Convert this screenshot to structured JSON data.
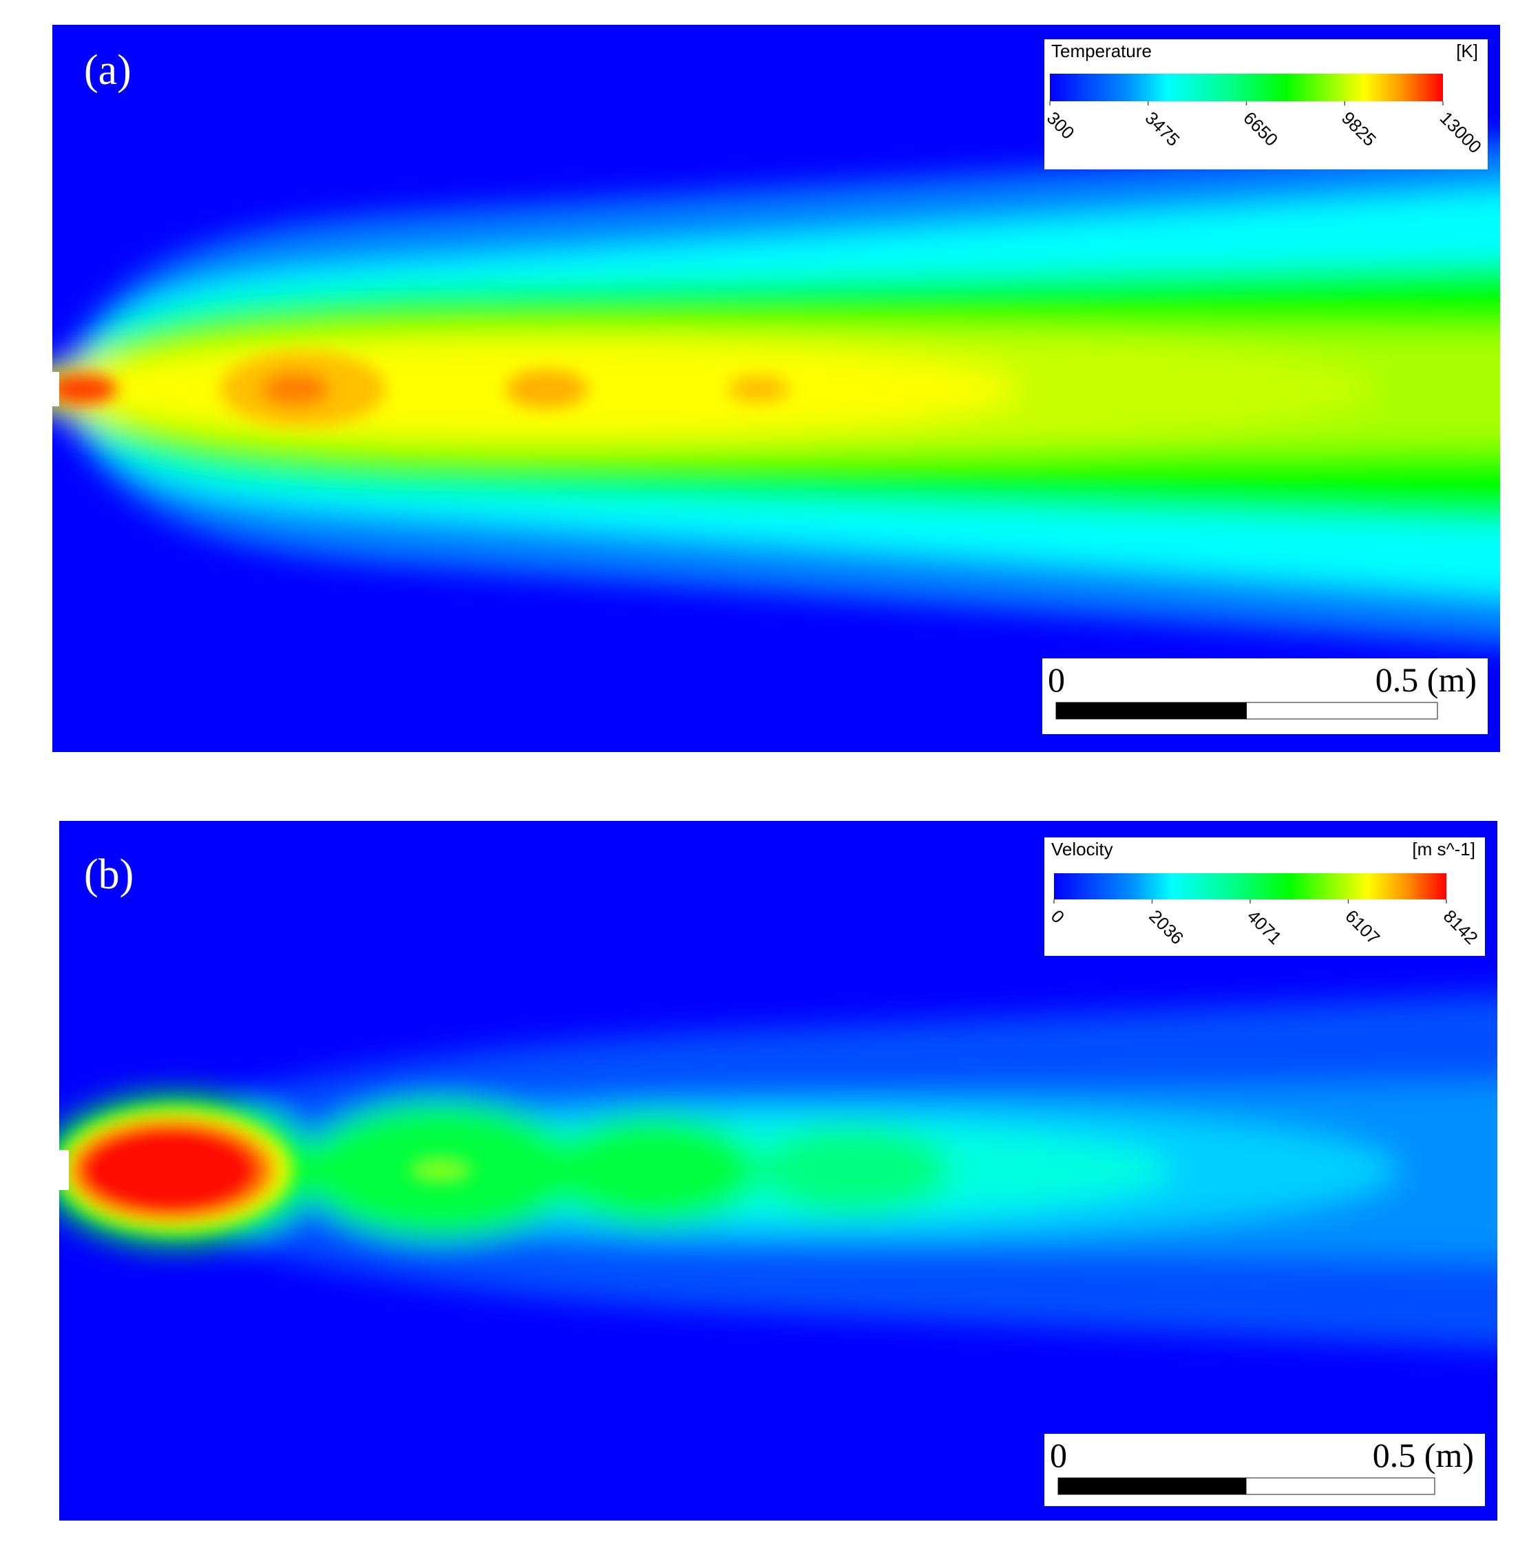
{
  "panels": [
    {
      "label": "(a)",
      "colorbar": {
        "title": "Temperature",
        "unit": "[K]",
        "ticks": [
          300,
          3475,
          6650,
          9825,
          13000
        ]
      },
      "scale_bar": {
        "start": "0",
        "end": "0.5 (m)"
      }
    },
    {
      "label": "(b)",
      "colorbar": {
        "title": "Velocity",
        "unit": "[m s^-1]",
        "ticks": [
          0,
          2036,
          4071,
          6107,
          8142
        ]
      },
      "scale_bar": {
        "start": "0",
        "end": "0.5 (m)"
      }
    }
  ]
}
